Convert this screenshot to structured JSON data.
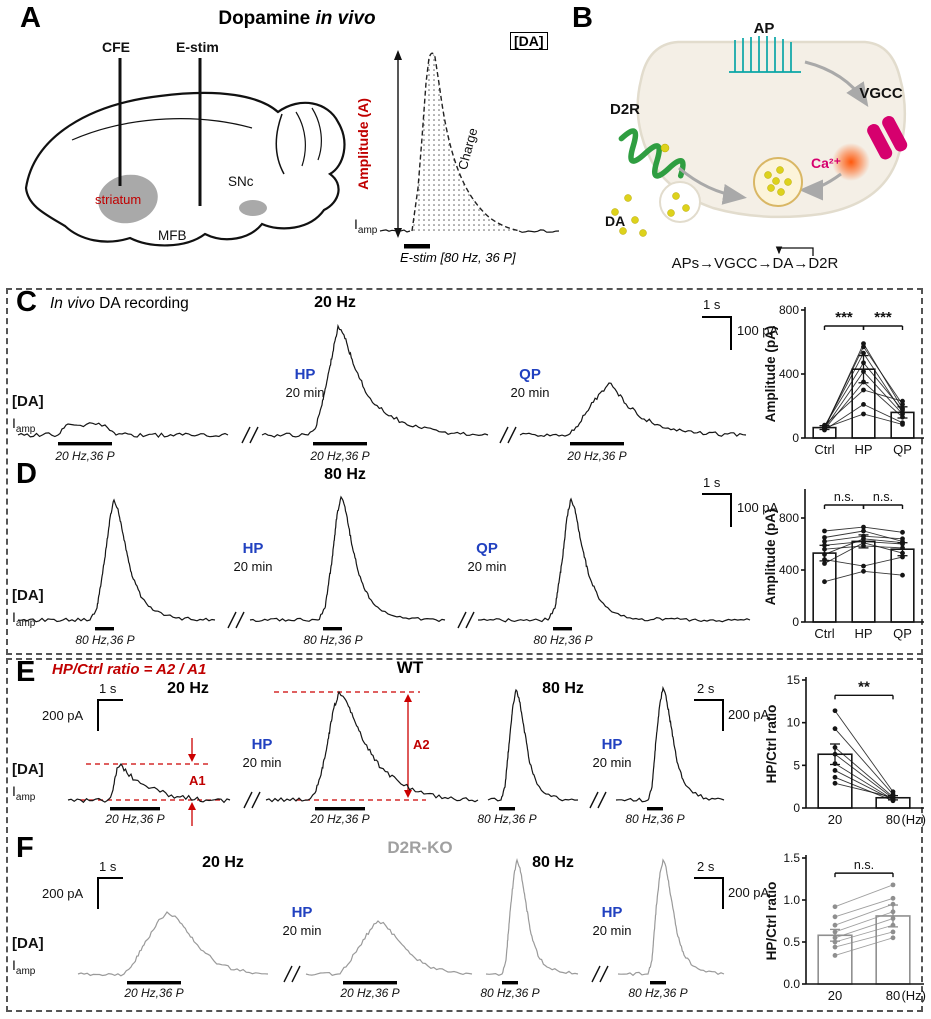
{
  "panelA": {
    "letter": "A",
    "title": {
      "pre": "Dopamine ",
      "italic": "in vivo"
    },
    "cfe": "CFE",
    "estim": "E-stim",
    "striatum": "striatum",
    "snc": "SNc",
    "mfb": "MFB",
    "da": "[DA]",
    "amplitude": "Amplitude (A)",
    "charge": "Charge",
    "protocol": "E-stim [80 Hz, 36 P]"
  },
  "panelB": {
    "letter": "B",
    "ap": "AP",
    "vgcc": "VGCC",
    "ca": "Ca²⁺",
    "d2r": "D2R",
    "da": "DA",
    "cascade": "APs→VGCC→DA→D2R"
  },
  "shared": {
    "da": "[DA]",
    "i": "I",
    "amp": "amp",
    "hp": "HP",
    "qp": "QP",
    "wait": "20 min",
    "stim20": "20 Hz,36 P",
    "stim80": "80 Hz,36 P",
    "freq20": "20 Hz",
    "freq80": "80 Hz",
    "s1": "1 s",
    "s2": "2 s",
    "pa100": "100 pA",
    "pa200": "200 pA"
  },
  "panelC": {
    "letter": "C",
    "title": {
      "italic": "In vivo",
      "rest": " DA recording"
    },
    "chart": {
      "type": "bar",
      "ylabel": "Amplitude (pA)",
      "ylim": [
        0,
        800
      ],
      "yticks": [
        0,
        400,
        800
      ],
      "ytick_labels": [
        "0",
        "400",
        "800"
      ],
      "categories": [
        "Ctrl",
        "HP",
        "QP"
      ],
      "means": [
        65,
        430,
        160
      ],
      "errors": [
        12,
        85,
        35
      ],
      "points": [
        [
          55,
          590,
          185
        ],
        [
          65,
          570,
          210
        ],
        [
          70,
          530,
          160
        ],
        [
          75,
          470,
          175
        ],
        [
          60,
          415,
          150
        ],
        [
          55,
          350,
          130
        ],
        [
          80,
          300,
          230
        ],
        [
          50,
          210,
          95
        ],
        [
          62,
          150,
          85
        ]
      ],
      "sig": [
        {
          "a": 0,
          "b": 1,
          "y": 700,
          "label": "***"
        },
        {
          "a": 1,
          "b": 2,
          "y": 700,
          "label": "***"
        }
      ],
      "color": "#151515"
    }
  },
  "panelD": {
    "letter": "D",
    "chart": {
      "type": "bar",
      "ylabel": "Amplitude (pA)",
      "ylim": [
        0,
        1000
      ],
      "yticks": [
        0,
        400,
        800
      ],
      "ytick_labels": [
        "0",
        "400",
        "800"
      ],
      "categories": [
        "Ctrl",
        "HP",
        "QP"
      ],
      "means": [
        530,
        620,
        560
      ],
      "errors": [
        60,
        50,
        50
      ],
      "points": [
        [
          520,
          640,
          610
        ],
        [
          700,
          730,
          690
        ],
        [
          620,
          660,
          640
        ],
        [
          450,
          610,
          530
        ],
        [
          560,
          585,
          570
        ],
        [
          480,
          430,
          500
        ],
        [
          310,
          390,
          360
        ],
        [
          650,
          700,
          620
        ],
        [
          590,
          620,
          600
        ]
      ],
      "sig": [
        {
          "a": 0,
          "b": 1,
          "y": 900,
          "label": "n.s."
        },
        {
          "a": 1,
          "b": 2,
          "y": 900,
          "label": "n.s."
        }
      ],
      "color": "#151515"
    }
  },
  "panelE": {
    "letter": "E",
    "formula": "HP/Ctrl ratio = A2 / A1",
    "genotype": "WT",
    "a1": "A1",
    "a2": "A2",
    "chart": {
      "type": "bar",
      "ylabel": "HP/Ctrl ratio",
      "ylim": [
        0,
        15
      ],
      "yticks": [
        0,
        5,
        10,
        15
      ],
      "ytick_labels": [
        "0",
        "5",
        "10",
        "15"
      ],
      "categories": [
        "20",
        "80"
      ],
      "xunit": "(Hz)",
      "means": [
        6.3,
        1.2
      ],
      "errors": [
        1.2,
        0.25
      ],
      "points": [
        [
          11.4,
          1.9
        ],
        [
          9.3,
          1.6
        ],
        [
          7.1,
          1.3
        ],
        [
          6.3,
          1.15
        ],
        [
          5.2,
          1.0
        ],
        [
          4.4,
          0.95
        ],
        [
          3.6,
          0.85
        ],
        [
          2.9,
          1.25
        ]
      ],
      "sig": [
        {
          "a": 0,
          "b": 1,
          "y": 13.2,
          "label": "**"
        }
      ],
      "color": "#151515"
    }
  },
  "panelF": {
    "letter": "F",
    "genotype": "D2R-KO",
    "chart": {
      "type": "bar",
      "ylabel": "HP/Ctrl ratio",
      "ylim": [
        0,
        1.5
      ],
      "yticks": [
        0,
        0.5,
        1.0,
        1.5
      ],
      "ytick_labels": [
        "0.0",
        "0.5",
        "1.0",
        "1.5"
      ],
      "categories": [
        "20",
        "80"
      ],
      "xunit": "(Hz)",
      "means": [
        0.58,
        0.81
      ],
      "errors": [
        0.07,
        0.13
      ],
      "points": [
        [
          0.92,
          1.18
        ],
        [
          0.8,
          1.02
        ],
        [
          0.7,
          0.95
        ],
        [
          0.62,
          0.86
        ],
        [
          0.55,
          0.78
        ],
        [
          0.5,
          0.7
        ],
        [
          0.44,
          0.62
        ],
        [
          0.34,
          0.55
        ]
      ],
      "sig": [
        {
          "a": 0,
          "b": 1,
          "y": 1.32,
          "label": "n.s."
        }
      ],
      "color": "#8f8f8f"
    }
  }
}
